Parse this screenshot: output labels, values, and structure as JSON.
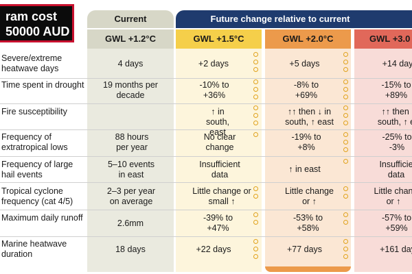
{
  "cost_box": {
    "line1": "ram cost",
    "line2": "50000 AUD"
  },
  "headers": {
    "current": "Current",
    "future": "Future change relative to current",
    "columns": [
      "GWL +1.2°C",
      "GWL +1.5°C",
      "GWL +2.0°C",
      "GWL +3.0"
    ]
  },
  "colors": {
    "current": "#d7d7c7",
    "gwl15": "#f5cf4a",
    "gwl20": "#ec9a4b",
    "gwl30": "#e1685a",
    "future_header": "#1f3b6e"
  },
  "rows": [
    {
      "label": "Severe/extreme heatwave days",
      "current": "4 days",
      "gwl15": "+2 days",
      "gwl20": "+5 days",
      "gwl30": "+14 day"
    },
    {
      "label": "Time spent in drought",
      "current": "19 months per decade",
      "gwl15": "-10% to +36%",
      "gwl20": "-8% to +69%",
      "gwl30": "-15% to +89%"
    },
    {
      "label": "Fire susceptibility",
      "current": "",
      "gwl15": "↑ in south, east",
      "gwl20": "↑↑ then ↓ in south, ↑ east",
      "gwl30": "↑↑ then ↓ south, ↑ ea"
    },
    {
      "label": "Frequency of extratropical lows",
      "current": "88 hours per year",
      "gwl15": "No clear change",
      "gwl20": "-19% to +8%",
      "gwl30": "-25% to -3%"
    },
    {
      "label": "Frequency of large hail events",
      "current": "5–10 events in east",
      "gwl15": "Insufficient data",
      "gwl20": "↑ in east",
      "gwl30": "Insufficie data"
    },
    {
      "label": "Tropical cyclone frequency (cat 4/5)",
      "current": "2–3 per year on average",
      "gwl15": "Little change or small ↑",
      "gwl20": "Little change or ↑",
      "gwl30": "Little chan or ↑"
    },
    {
      "label": "Maximum daily runoff",
      "current": "2.6mm",
      "gwl15": "-39% to +47%",
      "gwl20": "-53% to +58%",
      "gwl30": "-57% to +59%"
    },
    {
      "label": "Marine heatwave duration",
      "current": "18 days",
      "gwl15": "+22 days",
      "gwl20": "+77 days",
      "gwl30": "+161 day"
    }
  ]
}
